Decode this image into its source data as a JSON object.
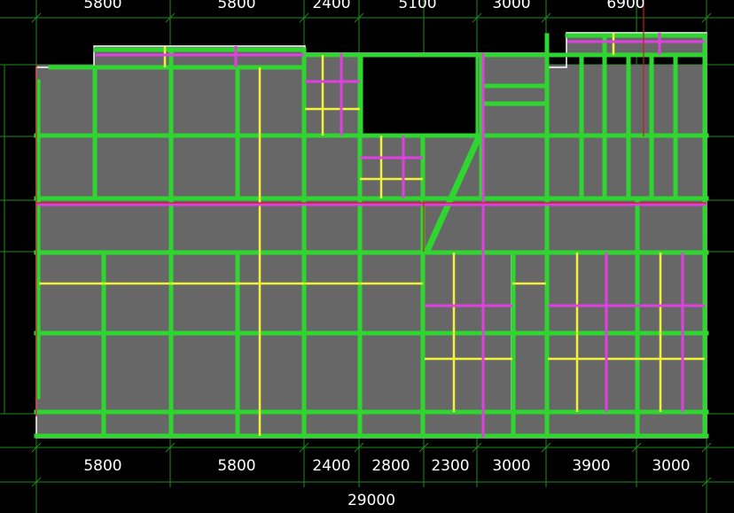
{
  "drawing": {
    "top_dims": [
      "5800",
      "5800",
      "2400",
      "5100",
      "3000",
      "6900"
    ],
    "bottom_dims": [
      "5800",
      "5800",
      "2400",
      "2800",
      "2300",
      "3000",
      "3900",
      "3000"
    ],
    "total_dim": "29000"
  },
  "colors": {
    "background": "#000000",
    "slab": "#676767",
    "beam_green": "#2fd62f",
    "beam_yellow": "#f2f23a",
    "beam_magenta": "#e040e0",
    "axis_green": "#1f8a1f",
    "outline_white": "#ffffff",
    "axis_red": "#c02020",
    "text": "#ffffff"
  }
}
